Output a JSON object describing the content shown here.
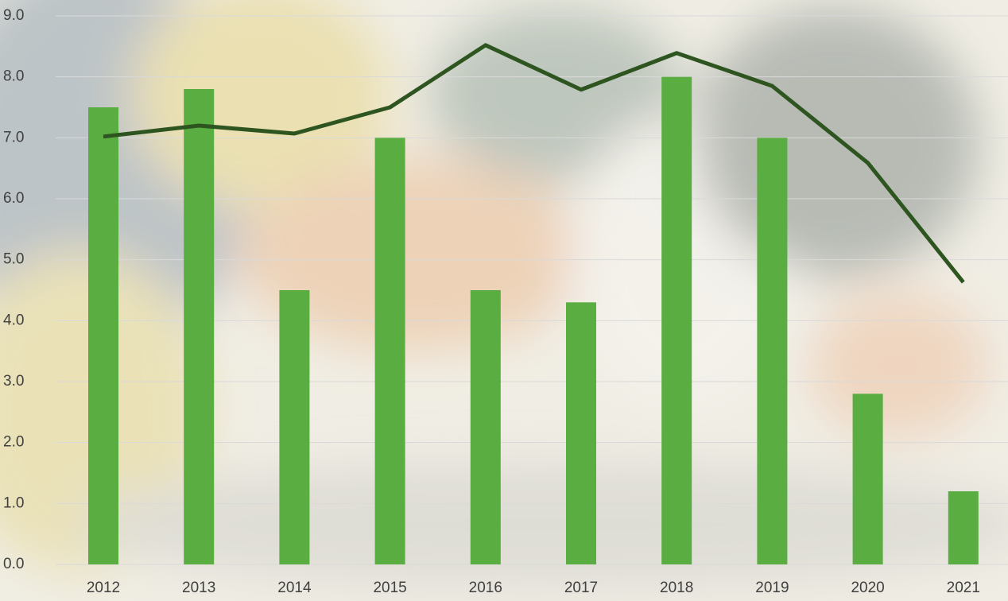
{
  "chart_data": {
    "type": "bar",
    "categories": [
      "2012",
      "2013",
      "2014",
      "2015",
      "2016",
      "2017",
      "2018",
      "2019",
      "2020",
      "2021"
    ],
    "series": [
      {
        "type": "bar",
        "color": "#5aad41",
        "values": [
          7.5,
          7.8,
          4.5,
          7.0,
          4.5,
          4.3,
          8.0,
          7.0,
          2.8,
          1.2
        ]
      },
      {
        "type": "line",
        "color": "#2e5520",
        "values": [
          7.02,
          7.2,
          7.07,
          7.5,
          8.52,
          7.79,
          8.39,
          7.85,
          6.59,
          4.63
        ]
      }
    ],
    "ylim": [
      0,
      9
    ],
    "yticks": [
      {
        "value": 0,
        "label": "0.0"
      },
      {
        "value": 1,
        "label": "1.0"
      },
      {
        "value": 2,
        "label": "2.0"
      },
      {
        "value": 3,
        "label": "3.0"
      },
      {
        "value": 4,
        "label": "4.0"
      },
      {
        "value": 5,
        "label": "5.0"
      },
      {
        "value": 6,
        "label": "6.0"
      },
      {
        "value": 7,
        "label": "7.0"
      },
      {
        "value": 8,
        "label": "8.0"
      },
      {
        "value": 9,
        "label": "9.0"
      }
    ],
    "grid": true
  }
}
